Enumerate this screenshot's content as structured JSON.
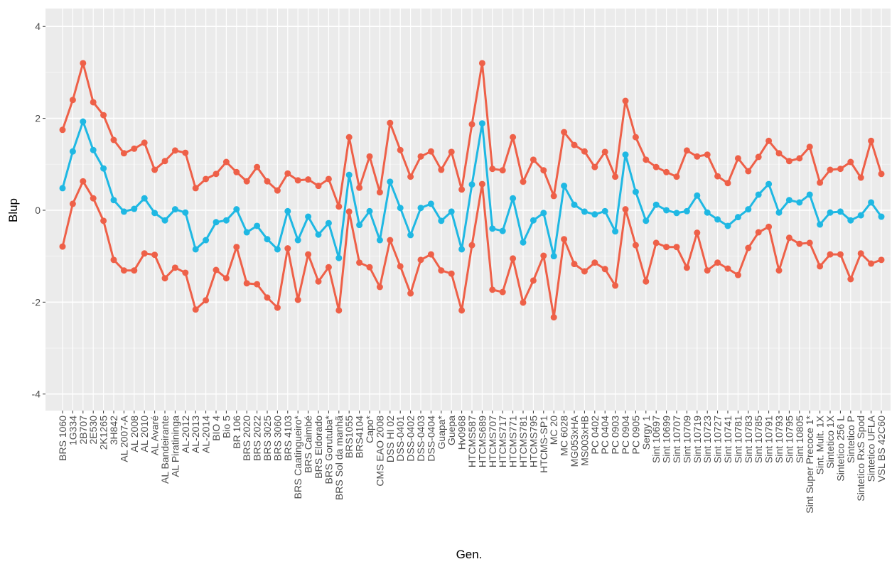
{
  "chart_data": {
    "type": "line",
    "x_label": "Gen.",
    "y_label": "Blup",
    "categories": [
      "BRS 1060",
      "1G334",
      "2B707",
      "2E530",
      "2K1265",
      "3H842",
      "AL 2007-A",
      "AL 2008",
      "AL 2010",
      "AL Avaré",
      "AL Bandeirante",
      "AL Piratininga",
      "AL-2012",
      "AL-2013",
      "AL-2014",
      "BIO 4",
      "Bio 5",
      "BR 106",
      "BRS 2020",
      "BRS 2022",
      "BRS 3025",
      "BRS 3060",
      "BRS 4103",
      "BRS Caatingueiro*",
      "BRS Caimbé",
      "BRS Eldorado",
      "BRS Gorutuba*",
      "BRS Sol da manhã",
      "BRS1055",
      "BRS4104",
      "Capo*",
      "CMS EAO 2008",
      "DSS HI 02",
      "DSS-0401",
      "DSS-0402",
      "DSS-0403",
      "DSS-0404",
      "Guapa*",
      "Guepa",
      "Hv0968",
      "HTCMS587",
      "HTCMS689",
      "HTCMS707",
      "HTCMS717",
      "HTCMS771",
      "HTCMS781",
      "HTCMS795",
      "HTCMS-SP1",
      "MC 20",
      "MC 6028",
      "MG053xHA",
      "MS003xHB",
      "PC 0402",
      "PC 0404",
      "PC 0903",
      "PC 0904",
      "PC 0905",
      "Sergy 1",
      "Sint 10697",
      "Sint 10699",
      "Sint 10707",
      "Sint 10709",
      "Sint 10719",
      "Sint 10723",
      "Sint 10727",
      "Sint 10741",
      "Sint 10781",
      "Sint 10783",
      "Sint 10785",
      "Sint 10791",
      "Sint 10793",
      "Sint 10795",
      "Sint 10805",
      "Sint Super Precoce 1*",
      "Sint. Mult. 1X",
      "Sintetico 1X",
      "Sintetico 256 L",
      "Sintetico P",
      "Sintetico RxS Spod",
      "Sintetico UFLA",
      "VSL BS 42C60"
    ],
    "series": [
      {
        "color": "#ee6048",
        "values": [
          1.75,
          2.4,
          3.2,
          2.35,
          2.07,
          1.53,
          1.24,
          1.34,
          1.47,
          0.88,
          1.07,
          1.3,
          1.25,
          0.48,
          0.68,
          0.79,
          1.05,
          0.83,
          0.63,
          0.94,
          0.63,
          0.43,
          0.8,
          0.65,
          0.67,
          0.53,
          0.68,
          0.08,
          1.59,
          0.49,
          1.17,
          0.39,
          1.9,
          1.31,
          0.73,
          1.17,
          1.28,
          0.88,
          1.27,
          0.45,
          1.87,
          3.2,
          0.9,
          0.87,
          1.59,
          0.62,
          1.1,
          0.87,
          0.31,
          1.7,
          1.42,
          1.28,
          0.94,
          1.27,
          0.73,
          2.38,
          1.59,
          1.1,
          0.94,
          0.83,
          0.73,
          1.3,
          1.17,
          1.21,
          0.74,
          0.59,
          1.13,
          0.85,
          1.16,
          1.51,
          1.24,
          1.07,
          1.13,
          1.38,
          0.6,
          0.88,
          0.9,
          1.05,
          0.71,
          1.51,
          0.79
        ]
      },
      {
        "color": "#1fb8e3",
        "values": [
          0.48,
          1.28,
          1.93,
          1.31,
          0.91,
          0.22,
          -0.03,
          0.03,
          0.26,
          -0.06,
          -0.22,
          0.02,
          -0.05,
          -0.85,
          -0.65,
          -0.26,
          -0.22,
          0.02,
          -0.48,
          -0.34,
          -0.63,
          -0.85,
          -0.02,
          -0.65,
          -0.14,
          -0.53,
          -0.28,
          -1.04,
          0.77,
          -0.32,
          -0.02,
          -0.65,
          0.62,
          0.05,
          -0.54,
          0.05,
          0.14,
          -0.23,
          -0.03,
          -0.85,
          0.56,
          1.89,
          -0.4,
          -0.45,
          0.26,
          -0.7,
          -0.22,
          -0.06,
          -1.0,
          0.53,
          0.12,
          -0.03,
          -0.09,
          -0.02,
          -0.46,
          1.21,
          0.4,
          -0.23,
          0.12,
          0.0,
          -0.06,
          -0.02,
          0.32,
          -0.05,
          -0.2,
          -0.34,
          -0.15,
          0.02,
          0.34,
          0.57,
          -0.05,
          0.22,
          0.17,
          0.34,
          -0.31,
          -0.05,
          -0.03,
          -0.22,
          -0.11,
          0.17,
          -0.14
        ]
      },
      {
        "color": "#ee6048",
        "values": [
          -0.79,
          0.14,
          0.63,
          0.26,
          -0.23,
          -1.08,
          -1.31,
          -1.31,
          -0.94,
          -0.97,
          -1.48,
          -1.25,
          -1.36,
          -2.16,
          -1.96,
          -1.3,
          -1.48,
          -0.8,
          -1.59,
          -1.61,
          -1.9,
          -2.12,
          -0.83,
          -1.95,
          -0.96,
          -1.55,
          -1.24,
          -2.18,
          -0.03,
          -1.14,
          -1.24,
          -1.67,
          -0.65,
          -1.22,
          -1.81,
          -1.08,
          -0.96,
          -1.31,
          -1.38,
          -2.18,
          -0.76,
          0.57,
          -1.73,
          -1.78,
          -1.05,
          -2.01,
          -1.53,
          -0.99,
          -2.33,
          -0.63,
          -1.17,
          -1.33,
          -1.14,
          -1.28,
          -1.64,
          0.02,
          -0.76,
          -1.55,
          -0.71,
          -0.8,
          -0.8,
          -1.25,
          -0.49,
          -1.31,
          -1.14,
          -1.27,
          -1.41,
          -0.82,
          -0.48,
          -0.36,
          -1.31,
          -0.6,
          -0.73,
          -0.71,
          -1.22,
          -0.96,
          -0.96,
          -1.5,
          -0.94,
          -1.16,
          -1.08
        ]
      }
    ],
    "ylim": [
      -4.36,
      4.39
    ],
    "yticks": [
      -4,
      -2,
      0,
      2,
      4
    ],
    "grid": true
  }
}
